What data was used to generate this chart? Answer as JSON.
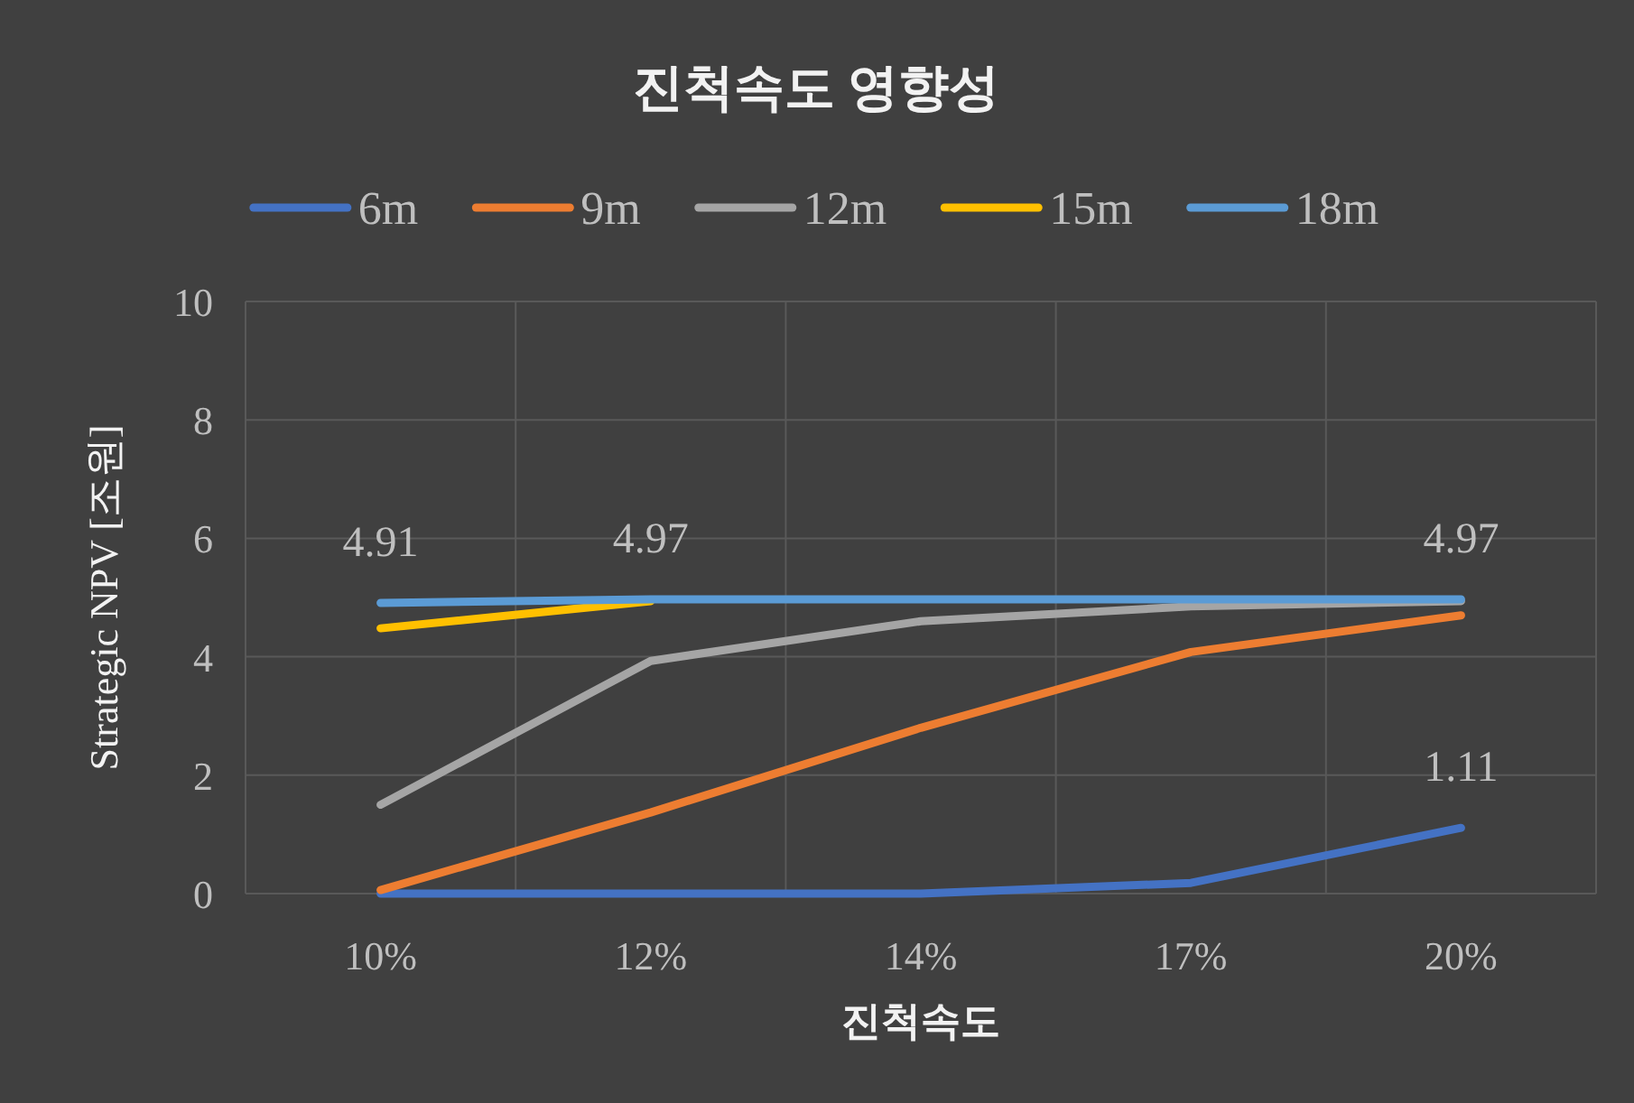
{
  "chart_data": {
    "type": "line",
    "title": "진척속도 영향성",
    "xlabel": "진척속도",
    "ylabel": "Strategic NPV [조원]",
    "categories": [
      "10%",
      "12%",
      "14%",
      "17%",
      "20%"
    ],
    "ylim": [
      0,
      10
    ],
    "yticks": [
      0,
      2,
      4,
      6,
      8,
      10
    ],
    "grid": true,
    "legend": "top",
    "line_style": "solid",
    "series": [
      {
        "name": "6m",
        "color": "#4472c4",
        "values": [
          0,
          0,
          0,
          0.18,
          1.11
        ],
        "value_labels": [
          null,
          null,
          null,
          null,
          "1.11"
        ]
      },
      {
        "name": "9m",
        "color": "#ed7d31",
        "values": [
          0.06,
          1.37,
          2.8,
          4.08,
          4.7
        ]
      },
      {
        "name": "12m",
        "color": "#a5a5a5",
        "values": [
          1.5,
          3.93,
          4.6,
          4.85,
          4.94
        ]
      },
      {
        "name": "15m",
        "color": "#ffc000",
        "values": [
          4.48,
          4.94,
          null,
          null,
          null
        ]
      },
      {
        "name": "18m",
        "color": "#5b9bd5",
        "values": [
          4.91,
          4.97,
          4.97,
          4.97,
          4.97
        ],
        "value_labels": [
          "4.91",
          "4.97",
          null,
          null,
          "4.97"
        ]
      }
    ]
  }
}
